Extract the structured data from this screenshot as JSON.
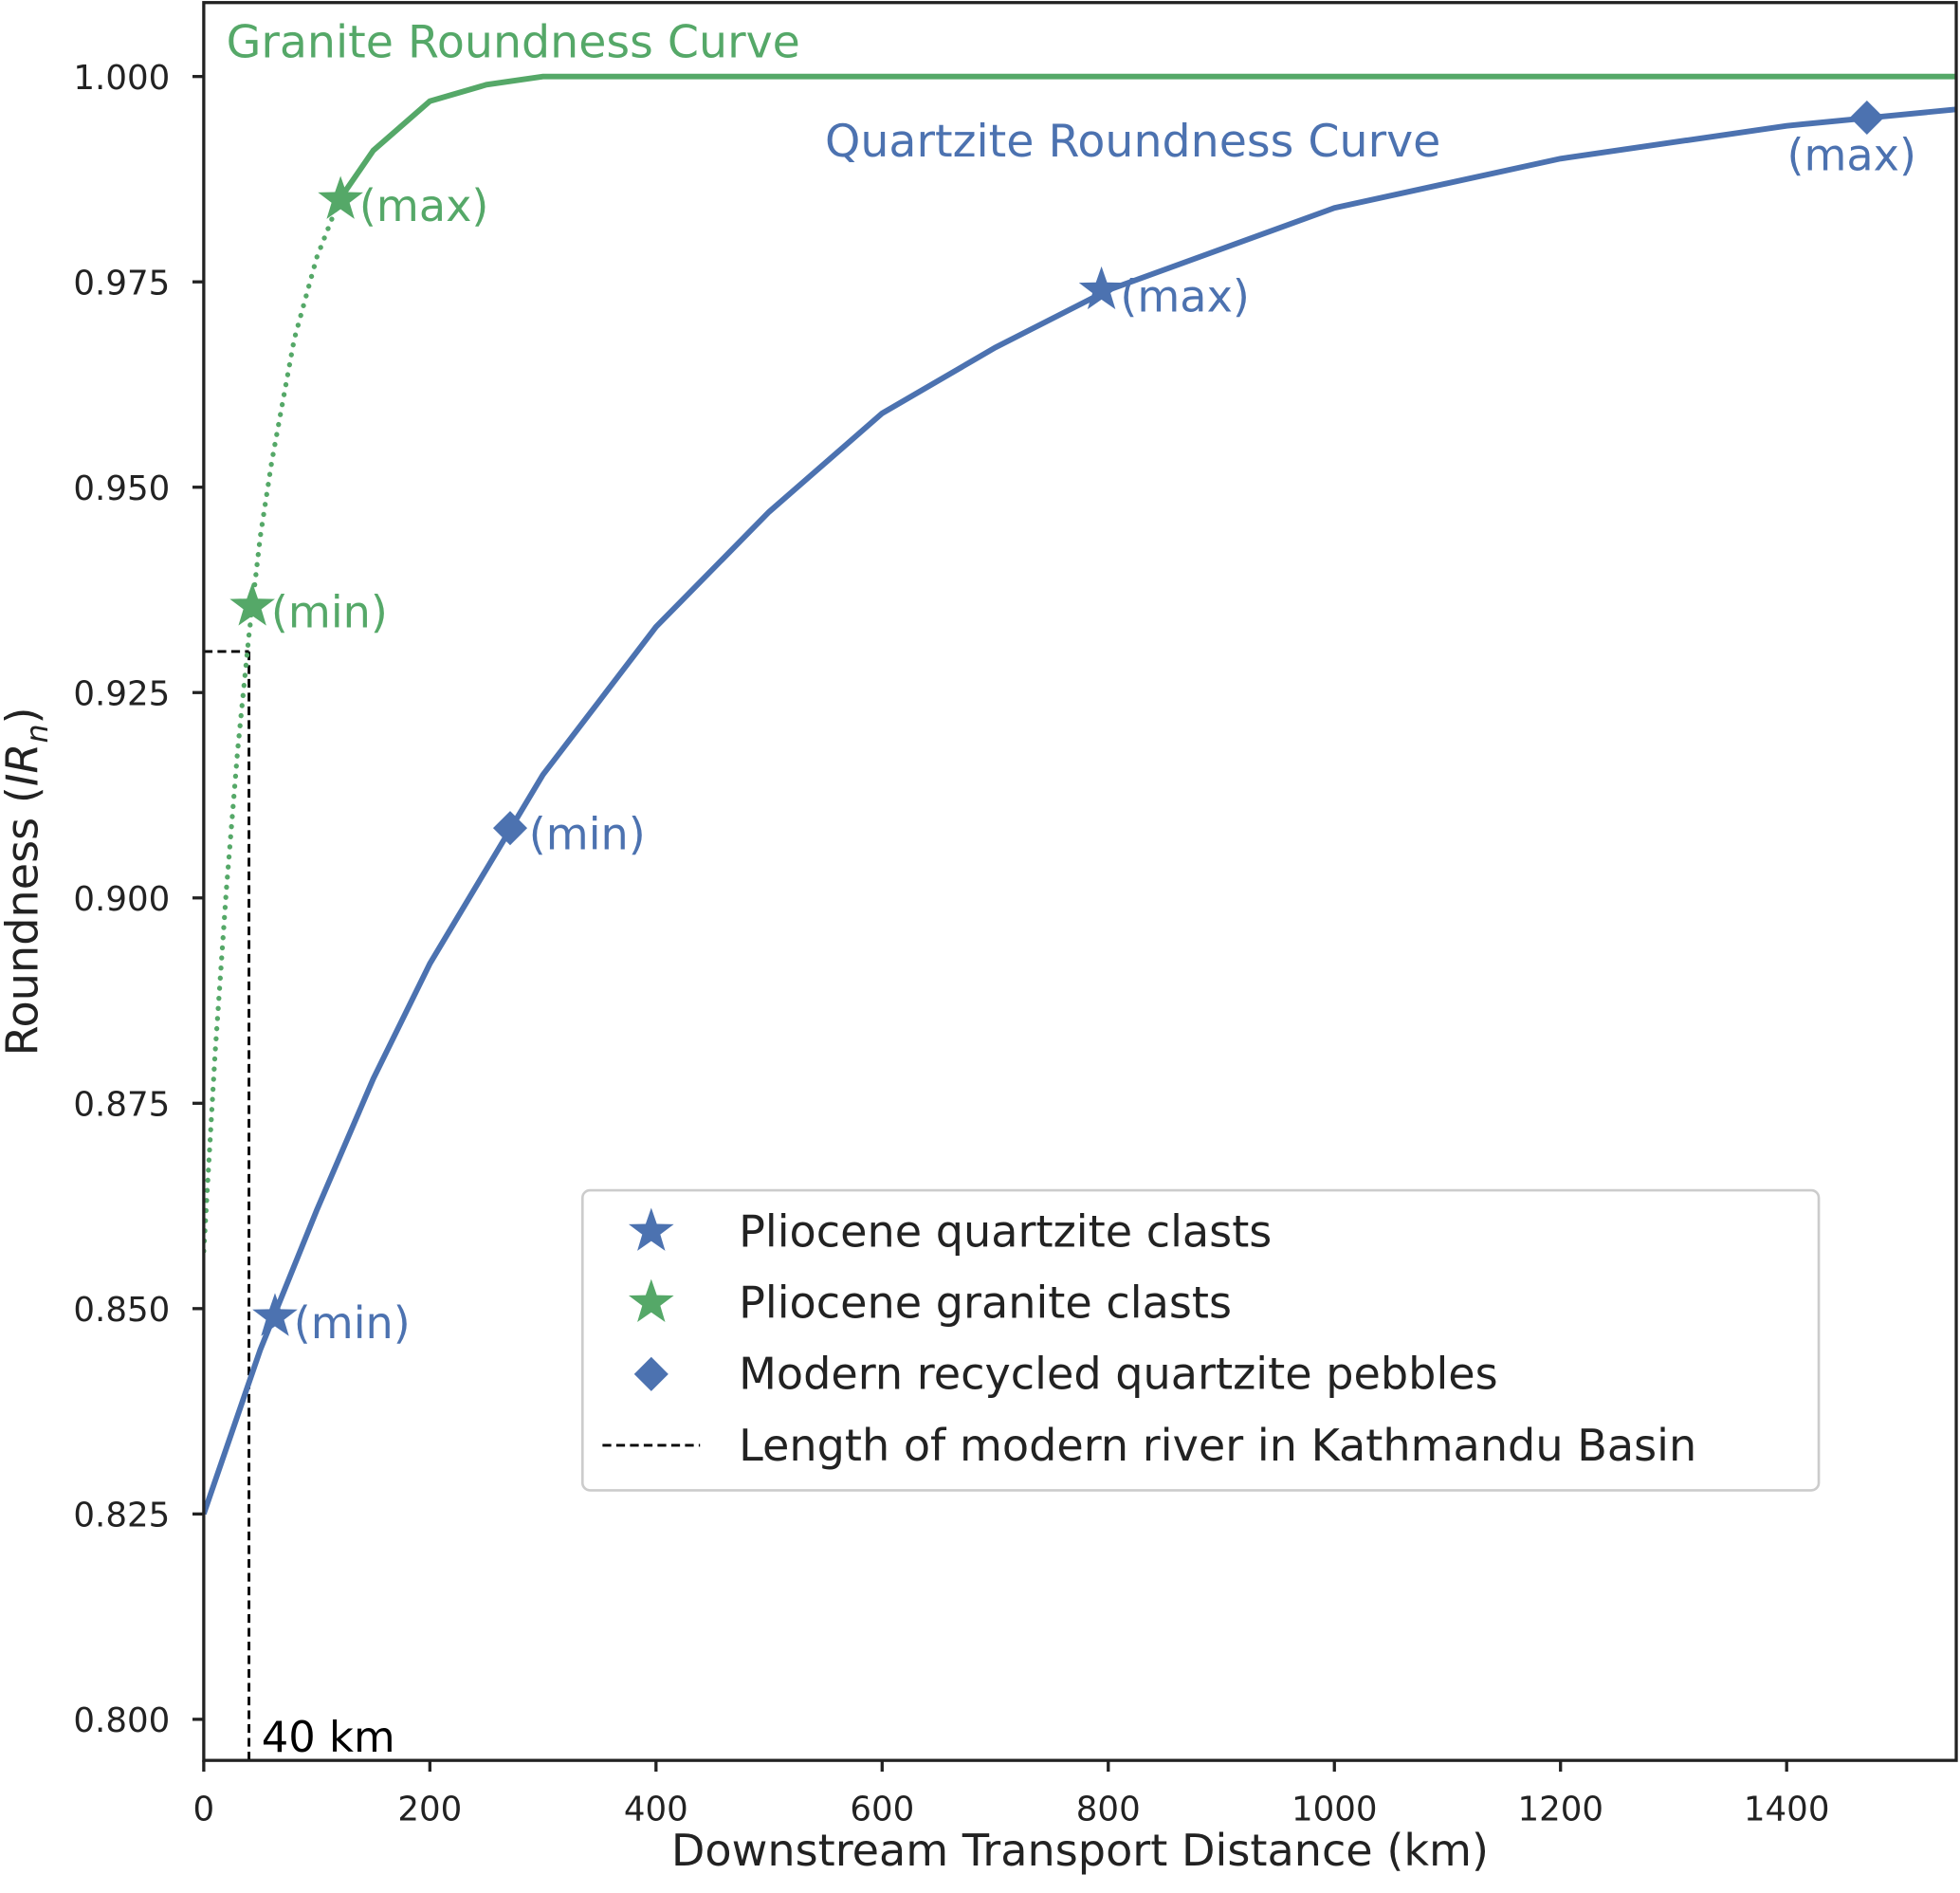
{
  "chart_data": {
    "type": "line",
    "xlabel": "Downstream Transport Distance (km)",
    "ylabel_parts": [
      "Roundness (",
      "IR",
      "n",
      ")"
    ],
    "xlim": [
      0,
      1550
    ],
    "ylim": [
      0.795,
      1.009
    ],
    "xticks": [
      0,
      200,
      400,
      600,
      800,
      1000,
      1200,
      1400
    ],
    "yticks": [
      {
        "value": 0.8,
        "label": "0.800"
      },
      {
        "value": 0.825,
        "label": "0.825"
      },
      {
        "value": 0.85,
        "label": "0.850"
      },
      {
        "value": 0.875,
        "label": "0.875"
      },
      {
        "value": 0.9,
        "label": "0.900"
      },
      {
        "value": 0.925,
        "label": "0.925"
      },
      {
        "value": 0.95,
        "label": "0.950"
      },
      {
        "value": 0.975,
        "label": "0.975"
      },
      {
        "value": 1.0,
        "label": "1.000"
      }
    ],
    "grid": false,
    "legend": "lower right",
    "curves": [
      {
        "label": "Granite Roundness Curve",
        "color": "#55a868",
        "dotted_x": [
          0,
          10,
          20,
          30,
          40,
          50,
          60,
          80,
          100,
          120
        ],
        "dotted_values": [
          0.857,
          0.881,
          0.901,
          0.918,
          0.932,
          0.944,
          0.953,
          0.968,
          0.978,
          0.985
        ],
        "x": [
          120,
          150,
          200,
          250,
          300,
          1550
        ],
        "values": [
          0.985,
          0.991,
          0.997,
          0.999,
          1.0,
          1.0
        ]
      },
      {
        "label": "Quartzite Roundness Curve",
        "color": "#4c72b0",
        "x": [
          0,
          50,
          100,
          150,
          200,
          300,
          400,
          500,
          600,
          700,
          800,
          1000,
          1200,
          1400,
          1550
        ],
        "values": [
          0.825,
          0.845,
          0.862,
          0.878,
          0.892,
          0.915,
          0.933,
          0.947,
          0.959,
          0.967,
          0.974,
          0.984,
          0.99,
          0.994,
          0.996
        ]
      }
    ],
    "series": [
      {
        "name": "Pliocene quartzite clasts",
        "marker": "star",
        "color": "#4c72b0",
        "x": [
          63,
          794
        ],
        "values": [
          0.849,
          0.974
        ],
        "point_labels": [
          "(min)",
          "(max)"
        ]
      },
      {
        "name": "Pliocene granite clasts",
        "marker": "star",
        "color": "#55a868",
        "x": [
          43,
          121
        ],
        "values": [
          0.9355,
          0.985
        ],
        "point_labels": [
          "(min)",
          "(max)"
        ]
      },
      {
        "name": "Modern recycled quartzite pebbles",
        "marker": "diamond",
        "color": "#4c72b0",
        "x": [
          271,
          1471
        ],
        "values": [
          0.9085,
          0.995
        ],
        "point_labels": [
          "(min)",
          "(max)"
        ]
      }
    ],
    "reference_line": {
      "name": "Length of modern river in Kathmandu Basin",
      "x": 40,
      "y": 0.93,
      "label": "40 km",
      "color": "#000000"
    }
  }
}
